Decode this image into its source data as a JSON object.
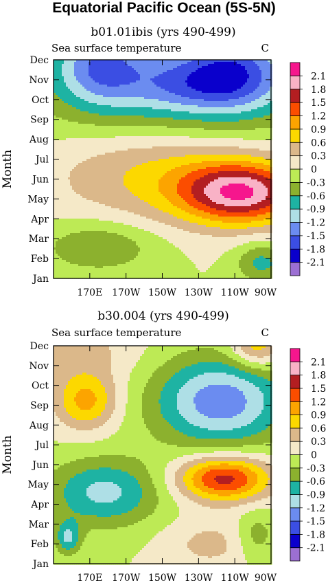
{
  "page_title": "Equatorial Pacific Ocean (5S-5N)",
  "color_scale": {
    "colors": [
      "#9c6fd3",
      "#0a00cc",
      "#3b4ee3",
      "#6b8cf0",
      "#aedfe6",
      "#1eb3a3",
      "#8cb12e",
      "#bdea55",
      "#f5e9c8",
      "#dbb88a",
      "#fcd800",
      "#fca400",
      "#fb4d00",
      "#b31e21",
      "#f9b2c6",
      "#f6168d"
    ],
    "labels": [
      "-2.1",
      "-1.8",
      "-1.5",
      "-1.2",
      "-0.9",
      "-0.6",
      "-0.3",
      "0",
      "0.3",
      "0.6",
      "0.9",
      "1.2",
      "1.5",
      "1.8",
      "2.1"
    ]
  },
  "panels": [
    {
      "run_title": "b01.01ibis (yrs 490-499)",
      "variable": "Sea surface temperature",
      "units": "C",
      "ylabel": "Month",
      "y_ticks": [
        "Jan",
        "Feb",
        "Mar",
        "Apr",
        "May",
        "Jun",
        "Jul",
        "Aug",
        "Sep",
        "Oct",
        "Nov",
        "Dec"
      ],
      "x_ticks": [
        "170E",
        "170W",
        "150W",
        "130W",
        "110W",
        "90W"
      ]
    },
    {
      "run_title": "b30.004 (yrs 490-499)",
      "variable": "Sea surface temperature",
      "units": "C",
      "ylabel": "Month",
      "y_ticks": [
        "Jan",
        "Feb",
        "Mar",
        "Apr",
        "May",
        "Jun",
        "Jul",
        "Aug",
        "Sep",
        "Oct",
        "Nov",
        "Dec"
      ],
      "x_ticks": [
        "170E",
        "170W",
        "150W",
        "130W",
        "110W",
        "90W"
      ]
    }
  ],
  "chart_data": [
    {
      "type": "heatmap",
      "title": "b01.01ibis (yrs 490-499)",
      "subtitle": "Sea surface temperature",
      "units": "C",
      "ylabel": "Month",
      "xlim": [
        150,
        270
      ],
      "x_ticks_deg": [
        170,
        190,
        210,
        230,
        250,
        270
      ],
      "x_tick_labels": [
        "170E",
        "170W",
        "150W",
        "130W",
        "110W",
        "90W"
      ],
      "y_tick_labels": [
        "Jan",
        "Feb",
        "Mar",
        "Apr",
        "May",
        "Jun",
        "Jul",
        "Aug",
        "Sep",
        "Oct",
        "Nov",
        "Dec"
      ],
      "levels": [
        -2.1,
        -1.8,
        -1.5,
        -1.2,
        -0.9,
        -0.6,
        -0.3,
        0,
        0.3,
        0.6,
        0.9,
        1.2,
        1.5,
        1.8,
        2.1
      ],
      "features": [
        {
          "x": 222,
          "y": 10.0,
          "v": -1.1,
          "sx": 55,
          "sy": 2.0
        },
        {
          "x": 228,
          "y": 9.7,
          "v": -0.5,
          "sx": 25,
          "sy": 0.9
        },
        {
          "x": 250,
          "y": 10.6,
          "v": -0.8,
          "sx": 18,
          "sy": 1.4
        },
        {
          "x": 175,
          "y": 10.8,
          "v": -0.9,
          "sx": 16,
          "sy": 1.4
        },
        {
          "x": 254,
          "y": 4.3,
          "v": 1.9,
          "sx": 24,
          "sy": 1.1
        },
        {
          "x": 210,
          "y": 5.3,
          "v": 0.7,
          "sx": 42,
          "sy": 1.7
        },
        {
          "x": 175,
          "y": 1.6,
          "v": -0.6,
          "sx": 22,
          "sy": 0.9
        },
        {
          "x": 265,
          "y": 0.8,
          "v": -0.7,
          "sx": 10,
          "sy": 0.7
        }
      ]
    },
    {
      "type": "heatmap",
      "title": "b30.004 (yrs 490-499)",
      "subtitle": "Sea surface temperature",
      "units": "C",
      "ylabel": "Month",
      "xlim": [
        150,
        270
      ],
      "x_ticks_deg": [
        170,
        190,
        210,
        230,
        250,
        270
      ],
      "x_tick_labels": [
        "170E",
        "170W",
        "150W",
        "130W",
        "110W",
        "90W"
      ],
      "y_tick_labels": [
        "Jan",
        "Feb",
        "Mar",
        "Apr",
        "May",
        "Jun",
        "Jul",
        "Aug",
        "Sep",
        "Oct",
        "Nov",
        "Dec"
      ],
      "levels": [
        -2.1,
        -1.8,
        -1.5,
        -1.2,
        -0.9,
        -0.6,
        -0.3,
        0,
        0.3,
        0.6,
        0.9,
        1.2,
        1.5,
        1.8,
        2.1
      ],
      "features": [
        {
          "x": 242,
          "y": 8.2,
          "v": -1.4,
          "sx": 26,
          "sy": 1.6
        },
        {
          "x": 178,
          "y": 3.6,
          "v": -1.0,
          "sx": 22,
          "sy": 1.2
        },
        {
          "x": 158,
          "y": 1.3,
          "v": -0.9,
          "sx": 5,
          "sy": 0.6
        },
        {
          "x": 244,
          "y": 4.3,
          "v": 1.65,
          "sx": 18,
          "sy": 0.8
        },
        {
          "x": 168,
          "y": 8.2,
          "v": 1.0,
          "sx": 12,
          "sy": 1.0
        },
        {
          "x": 165,
          "y": 10.8,
          "v": 0.4,
          "sx": 22,
          "sy": 1.2
        },
        {
          "x": 262,
          "y": 11.0,
          "v": 0.9,
          "sx": 10,
          "sy": 0.8
        },
        {
          "x": 237,
          "y": 1.0,
          "v": 0.4,
          "sx": 18,
          "sy": 0.9
        },
        {
          "x": 262,
          "y": 1.4,
          "v": -0.5,
          "sx": 8,
          "sy": 0.9
        }
      ]
    }
  ]
}
